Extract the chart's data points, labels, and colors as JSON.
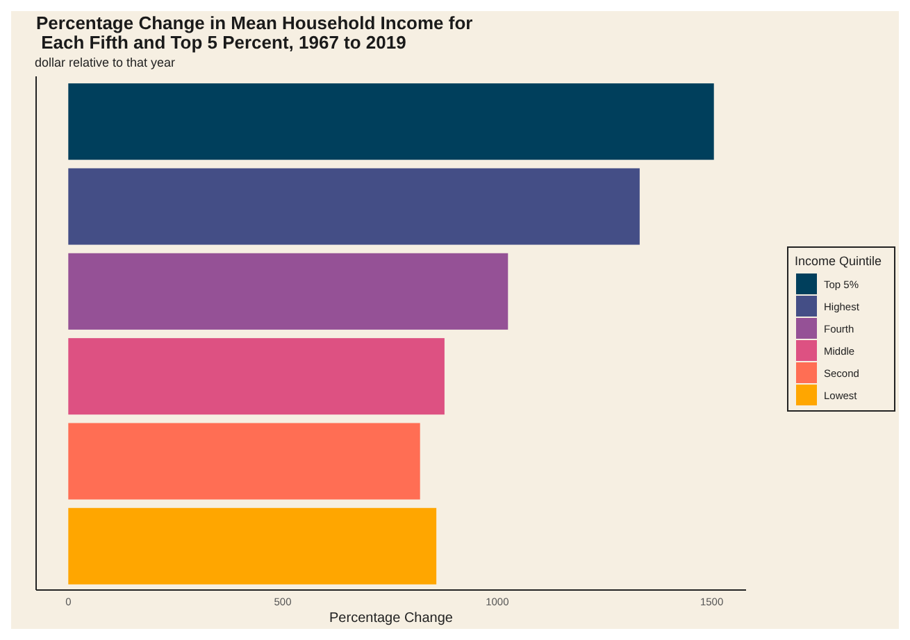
{
  "chart_data": {
    "type": "bar",
    "orientation": "horizontal",
    "stacked": true,
    "title": "Percentage Change in Mean Household Income for\n Each Fifth and Top 5 Percent, 1967 to 2019",
    "subtitle": "dollar relative to that year",
    "xlabel": "Percentage Change",
    "legend_title": "Income Quintile",
    "legend": "right",
    "grid": false,
    "categories": [
      null,
      null,
      null,
      null,
      null,
      null
    ],
    "xlim": [
      -75,
      1580
    ],
    "xticks": [
      0,
      500,
      1000,
      1500
    ],
    "series": [
      {
        "name": "Top 5%",
        "color": "#003f5c",
        "values": [
          1505,
          null,
          null,
          null,
          null,
          null
        ]
      },
      {
        "name": "Highest",
        "color": "#444e86",
        "values": [
          null,
          1332,
          null,
          null,
          null,
          null
        ]
      },
      {
        "name": "Fourth",
        "color": "#955196",
        "values": [
          null,
          null,
          1025,
          null,
          null,
          null
        ]
      },
      {
        "name": "Middle",
        "color": "#dd5182",
        "values": [
          null,
          null,
          null,
          877,
          null,
          null
        ]
      },
      {
        "name": "Second",
        "color": "#ff6e54",
        "values": [
          null,
          null,
          null,
          null,
          820,
          null
        ]
      },
      {
        "name": "Lowest",
        "color": "#ffa600",
        "values": [
          null,
          null,
          null,
          null,
          null,
          858
        ]
      }
    ]
  }
}
